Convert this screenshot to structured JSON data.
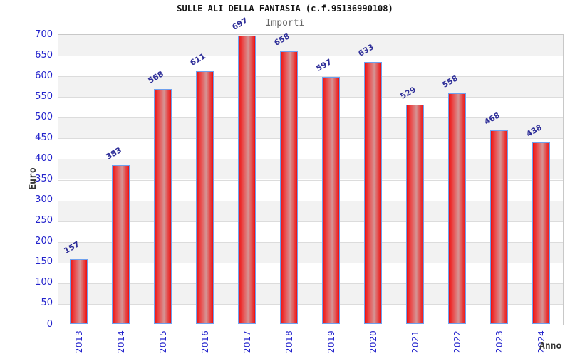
{
  "header": {
    "title": "SULLE ALI DELLA FANTASIA (c.f.95136990108)",
    "subtitle": "Importi"
  },
  "axes": {
    "y_label": "Euro",
    "x_label": "Anno"
  },
  "chart_data": {
    "type": "bar",
    "categories": [
      "2013",
      "2014",
      "2015",
      "2016",
      "2017",
      "2018",
      "2019",
      "2020",
      "2021",
      "2022",
      "2023",
      "2024"
    ],
    "values": [
      157,
      383,
      568,
      611,
      697,
      658,
      597,
      633,
      529,
      558,
      468,
      438
    ],
    "title": "SULLE ALI DELLA FANTASIA (c.f.95136990108)",
    "subtitle": "Importi",
    "xlabel": "Anno",
    "ylabel": "Euro",
    "ylim": [
      0,
      700
    ],
    "ytick_step": 50,
    "grid": "alternating horizontal bands with gridlines every 50",
    "legend": "none",
    "bar_labels_shown": true,
    "colors": {
      "bar_red": "#ee1010",
      "bar_highlight": "#d59494",
      "bar_edge": "#6ea0ee",
      "axis_tick_label": "#2222cc",
      "value_label": "#2f2f99",
      "band_gray": "#f2f2f2",
      "band_white": "#ffffff",
      "gridline": "#dcdcdc",
      "title_color": "#111111",
      "subtitle_color": "#666666",
      "axis_title_color": "#333333"
    }
  }
}
